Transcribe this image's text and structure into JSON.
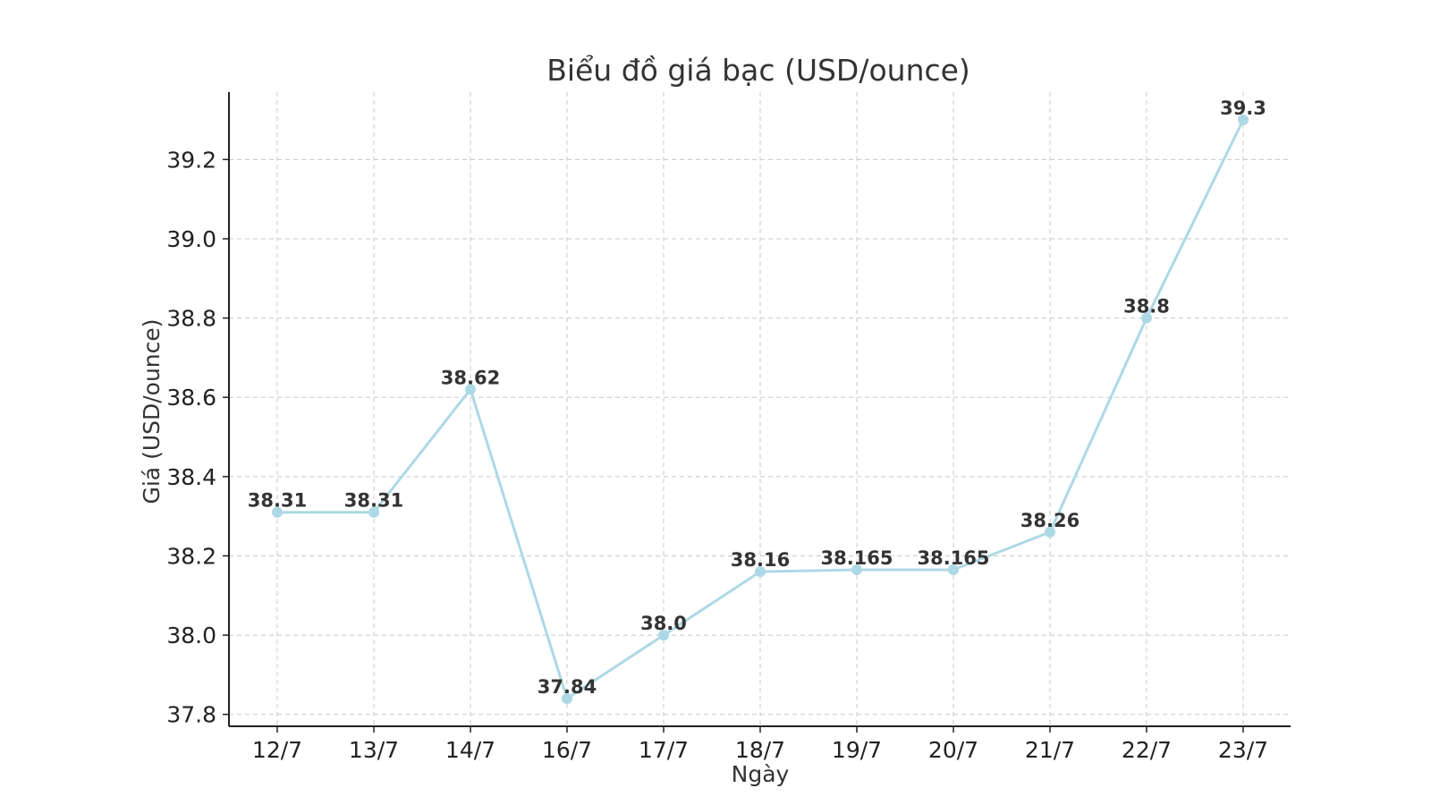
{
  "chart_data": {
    "type": "line",
    "title": "Biểu đồ giá bạc (USD/ounce)",
    "xlabel": "Ngày",
    "ylabel": "Giá (USD/ounce)",
    "categories": [
      "12/7",
      "13/7",
      "14/7",
      "16/7",
      "17/7",
      "18/7",
      "19/7",
      "20/7",
      "21/7",
      "22/7",
      "23/7"
    ],
    "series": [
      {
        "values": [
          38.31,
          38.31,
          38.62,
          37.84,
          38.0,
          38.16,
          38.165,
          38.165,
          38.26,
          38.8,
          39.3
        ],
        "labels": [
          "38.31",
          "38.31",
          "38.62",
          "37.84",
          "38.0",
          "38.16",
          "38.165",
          "38.165",
          "38.26",
          "38.8",
          "39.3"
        ]
      }
    ],
    "ylim": [
      37.77,
      39.37
    ],
    "yticks": [
      37.8,
      38.0,
      38.2,
      38.4,
      38.6,
      38.8,
      39.0,
      39.2
    ],
    "ytick_labels": [
      "37.8",
      "38.0",
      "38.2",
      "38.4",
      "38.6",
      "38.8",
      "39.0",
      "39.2"
    ],
    "grid": true,
    "colors": {
      "line": "#add8e6",
      "marker": "#add8e6",
      "text": "#333333",
      "grid": "#c8c8c8",
      "axis": "#222222"
    }
  }
}
